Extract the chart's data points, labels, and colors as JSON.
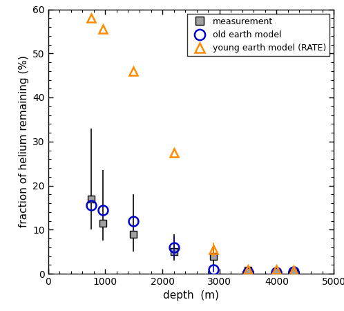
{
  "title": "",
  "xlabel": "depth  (m)",
  "ylabel": "fraction of helium remaining (%)",
  "xlim": [
    0,
    5000
  ],
  "ylim": [
    0,
    60
  ],
  "xticks": [
    0,
    1000,
    2000,
    3000,
    4000,
    5000
  ],
  "yticks": [
    0,
    10,
    20,
    30,
    40,
    50,
    60
  ],
  "measurement_x": [
    750,
    960,
    1490,
    2200,
    2900,
    3500,
    4000,
    4300
  ],
  "measurement_y": [
    17,
    11.5,
    9,
    5,
    4,
    0.8,
    0.5,
    0.5
  ],
  "measurement_yerr_lo": [
    7,
    4,
    4,
    2,
    2,
    0.5,
    0.3,
    0.3
  ],
  "measurement_yerr_hi": [
    16,
    12,
    9,
    4,
    2,
    0.5,
    0.3,
    0.3
  ],
  "old_earth_x": [
    750,
    960,
    1490,
    2200,
    2900,
    3500,
    4000,
    4300
  ],
  "old_earth_y": [
    15.5,
    14.5,
    12,
    6,
    1,
    0.3,
    0.3,
    0.5
  ],
  "old_earth_yerr_lo": [
    0,
    0,
    0,
    2.5,
    0.7,
    0,
    0,
    0
  ],
  "old_earth_yerr_hi": [
    0,
    0,
    0,
    2.5,
    0.7,
    0,
    0,
    0
  ],
  "young_earth_x": [
    750,
    960,
    1490,
    2200,
    2900,
    3500,
    4000,
    4300
  ],
  "young_earth_y": [
    58,
    55.5,
    46,
    27.5,
    5.5,
    1,
    1,
    0.8
  ],
  "young_earth_yerr_lo": [
    0,
    0,
    0,
    0,
    1.5,
    0,
    0,
    0
  ],
  "young_earth_yerr_hi": [
    0,
    0,
    0,
    0,
    1.5,
    0,
    0,
    0
  ],
  "measurement_color": "#a0a0a0",
  "old_earth_color": "#0000cc",
  "young_earth_color": "#ff8c00",
  "legend_labels": [
    "measurement",
    "old earth model",
    "young earth model (RATE)"
  ],
  "figwidth": 4.98,
  "figheight": 4.5,
  "dpi": 100
}
